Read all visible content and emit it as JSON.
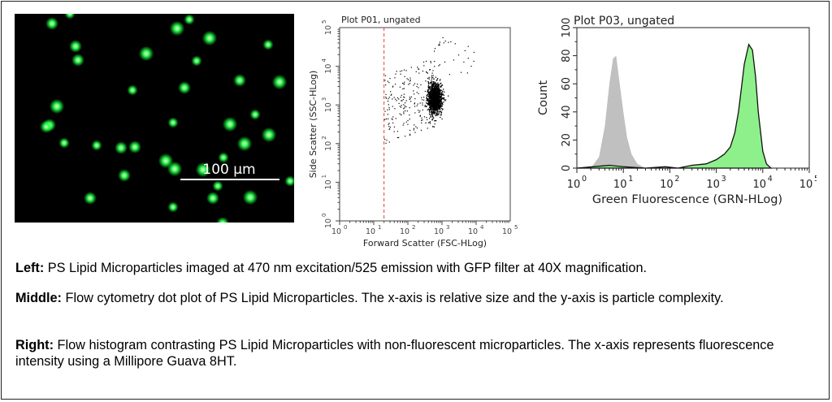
{
  "micrograph": {
    "scale_bar_label": "100 µm",
    "bead_color": "#2bff4a"
  },
  "chart_data": [
    {
      "type": "scatter",
      "title": "Plot P01, ungated",
      "xlabel": "Forward Scatter (FSC-HLog)",
      "ylabel": "Side Scatter (SSC-HLog)",
      "x_scale": "log",
      "y_scale": "log",
      "xlim": [
        1,
        100000
      ],
      "ylim": [
        1,
        100000
      ],
      "x_ticks": [
        "10",
        "10",
        "10",
        "10",
        "10",
        "10"
      ],
      "x_tick_exponents": [
        "0",
        "1",
        "2",
        "3",
        "4",
        "5"
      ],
      "y_ticks": [
        "10",
        "10",
        "10",
        "10",
        "10",
        "10"
      ],
      "y_tick_exponents": [
        "0",
        "1",
        "2",
        "3",
        "4",
        "5"
      ],
      "gate_line_x": 20,
      "gate_color": "#e0413a",
      "cluster": {
        "center_x": 600,
        "center_y": 1500,
        "spread_log_x": 0.1,
        "spread_log_y": 0.18
      },
      "grid": false
    },
    {
      "type": "area",
      "title": "Plot P03, ungated",
      "xlabel": "Green Fluorescence (GRN-HLog)",
      "ylabel": "Count",
      "x_scale": "log",
      "xlim": [
        1,
        100000
      ],
      "ylim": [
        0,
        100
      ],
      "x_ticks": [
        "10",
        "10",
        "10",
        "10",
        "10",
        "10"
      ],
      "x_tick_exponents": [
        "0",
        "1",
        "2",
        "3",
        "4",
        "5"
      ],
      "y_ticks": [
        "0",
        "20",
        "40",
        "60",
        "80",
        "100"
      ],
      "series": [
        {
          "fill": "#c0c0c0",
          "x": [
            2.0,
            3.0,
            4.0,
            5.0,
            6.0,
            7.0,
            8.0,
            10.0,
            12.0,
            15.0,
            20.0,
            30.0
          ],
          "y": [
            0,
            8,
            30,
            60,
            78,
            80,
            65,
            40,
            22,
            10,
            3,
            0
          ]
        },
        {
          "fill": "#8ef08b",
          "x": [
            1.0,
            5.0,
            10.0,
            30.0,
            80.0,
            150.0,
            300.0,
            600.0,
            1000.0,
            1500.0,
            2000.0,
            2500.0,
            3000.0,
            3500.0,
            4000.0,
            5000.0,
            6000.0,
            7000.0,
            8000.0,
            10000.0,
            12000.0,
            15000.0
          ],
          "y": [
            0,
            2,
            1,
            0,
            1,
            0,
            2,
            3,
            6,
            10,
            15,
            25,
            40,
            58,
            74,
            88,
            84,
            65,
            40,
            12,
            3,
            0
          ]
        }
      ],
      "grid": false
    }
  ],
  "captions": [
    {
      "label": "Left:",
      "text": " PS Lipid Microparticles imaged at 470 nm excitation/525 emission with GFP filter at 40X magnification."
    },
    {
      "label": "Middle:",
      "text": " Flow cytometry dot plot of PS Lipid Microparticles. The x-axis is relative size and the y-axis is particle complexity."
    },
    {
      "label": "Right:",
      "text": " Flow histogram contrasting PS Lipid Microparticles with non-fluorescent microparticles. The x-axis represents fluorescence intensity using a Millipore Guava 8HT."
    }
  ]
}
